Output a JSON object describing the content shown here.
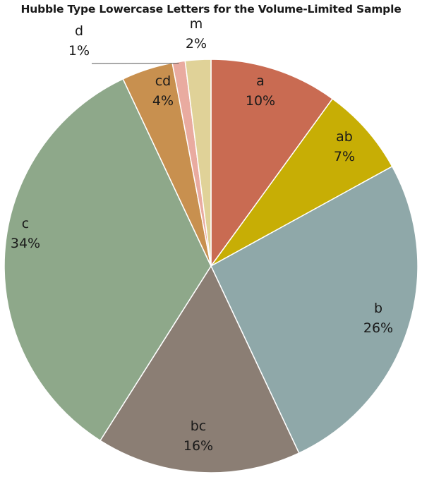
{
  "chart_data": {
    "type": "pie",
    "title": "Hubble Type Lowercase Letters for the Volume-Limited Sample",
    "slices": [
      {
        "label": "a",
        "value": 10,
        "display": "10%",
        "color": "#c96b52"
      },
      {
        "label": "ab",
        "value": 7,
        "display": "7%",
        "color": "#c7ae05"
      },
      {
        "label": "b",
        "value": 26,
        "display": "26%",
        "color": "#8fa8a9"
      },
      {
        "label": "bc",
        "value": 16,
        "display": "16%",
        "color": "#8b7e74"
      },
      {
        "label": "c",
        "value": 34,
        "display": "34%",
        "color": "#8ea88a"
      },
      {
        "label": "cd",
        "value": 4,
        "display": "4%",
        "color": "#c8904f"
      },
      {
        "label": "d",
        "value": 1,
        "display": "1%",
        "color": "#e9aba0"
      },
      {
        "label": "m",
        "value": 2,
        "display": "2%",
        "color": "#e0d298"
      }
    ],
    "start_angle": "12 o'clock",
    "direction": "clockwise",
    "legend": "none"
  }
}
